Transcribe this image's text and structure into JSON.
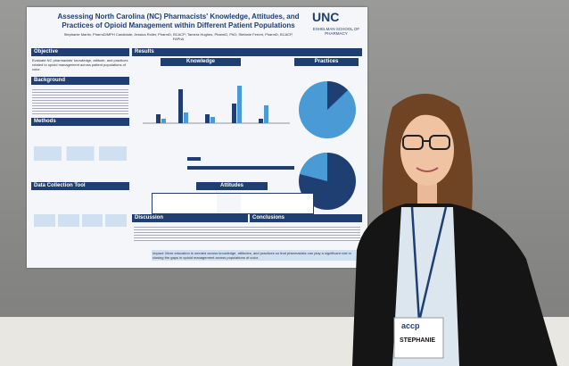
{
  "poster": {
    "title": "Assessing North Carolina (NC) Pharmacists' Knowledge, Attitudes, and Practices of Opioid Management within Different Patient Populations",
    "authors": "Stephanie Martin, PharmD/MPH Candidate; Jessica Roller, PharmD, BCACP; Tamera Hughes, PharmD, PhD; Stefanie Ferreri, PharmD, BCACP, FAPhA",
    "logo": "UNC",
    "school": "ESHELMAN SCHOOL OF PHARMACY",
    "sections": {
      "objective": "Objective",
      "background": "Background",
      "methods": "Methods",
      "tool": "Data Collection Tool",
      "results": "Results",
      "knowledge": "Knowledge",
      "practices": "Practices",
      "attitudes": "Attitudes",
      "discussion": "Discussion",
      "conclusions": "Conclusions"
    },
    "objective_text": "Evaluate NC pharmacists' knowledge, attitude, and practices related to opioid management across patient populations of color.",
    "impact": "Impact: More education is needed across knowledge, attitudes, and practices so that pharmacists can play a significant role in closing the gaps in opioid management across populations of color."
  },
  "badge": {
    "org": "accp",
    "name": "STEPHANIE"
  }
}
